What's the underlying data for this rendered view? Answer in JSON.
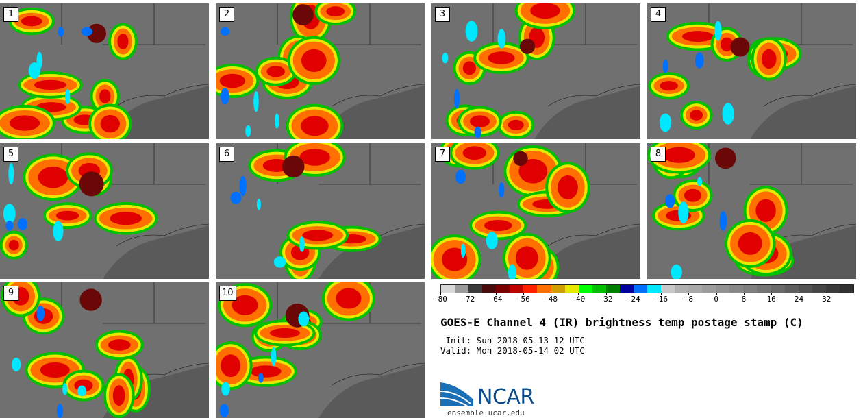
{
  "panels": [
    {
      "label": "1"
    },
    {
      "label": "2"
    },
    {
      "label": "3"
    },
    {
      "label": "4"
    },
    {
      "label": "5"
    },
    {
      "label": "6"
    },
    {
      "label": "7"
    },
    {
      "label": "8"
    },
    {
      "label": "9"
    },
    {
      "label": "10"
    }
  ],
  "colorbar": {
    "ticks": [
      "-80",
      "-72",
      "-64",
      "-56",
      "-48",
      "-40",
      "-32",
      "-24",
      "-16",
      "-8",
      "0",
      "8",
      "16",
      "24",
      "32"
    ],
    "min": -80,
    "max": 40,
    "colors": [
      "#d8d8d8",
      "#9a9a9a",
      "#3a3a3a",
      "#4a0a0a",
      "#7a0000",
      "#c00000",
      "#ff2000",
      "#ff7000",
      "#d0a000",
      "#e8e800",
      "#00ff00",
      "#00c000",
      "#008000",
      "#0000a0",
      "#0070ff",
      "#00e8ff",
      "#c8c8c8",
      "#b0b0b0",
      "#a8a8a8",
      "#9c9c9c",
      "#929292",
      "#888888",
      "#7e7e7e",
      "#747474",
      "#6a6a6a",
      "#5e5e5e",
      "#525252",
      "#464646",
      "#3a3a3a",
      "#303030"
    ]
  },
  "title": "GOES-E Channel 4 (IR) brightness temp postage stamp (C)",
  "init_text": " Init: Sun 2018-05-13 12 UTC",
  "valid_text": "Valid: Mon 2018-05-14 02 UTC",
  "logo_text": "NCAR",
  "url_text": "ensemble.ucar.edu"
}
